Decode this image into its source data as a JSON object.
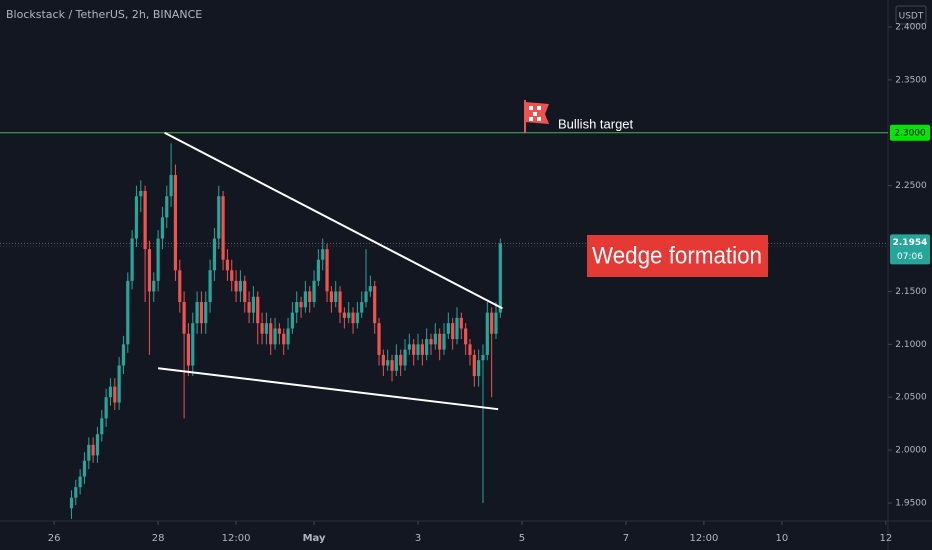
{
  "chart_data": {
    "type": "candlestick",
    "title": "Blockstack / TetherUS, 2h, BINANCE",
    "axis_unit": "USDT",
    "up_color": "#26a69a",
    "down_color": "#ef5350",
    "grid": false,
    "xlim": [
      -25,
      385
    ],
    "ylim": [
      1.933,
      2.4255
    ],
    "xticks": [
      {
        "value": 0,
        "label": "26"
      },
      {
        "value": 48,
        "label": "28"
      },
      {
        "value": 84,
        "label": "12:00"
      },
      {
        "value": 120,
        "label": "May"
      },
      {
        "value": 168,
        "label": "3"
      },
      {
        "value": 216,
        "label": "5"
      },
      {
        "value": 264,
        "label": "7"
      },
      {
        "value": 300,
        "label": "12:00"
      },
      {
        "value": 336,
        "label": "10"
      },
      {
        "value": 384,
        "label": "12"
      }
    ],
    "yticks": [
      {
        "value": 1.95,
        "label": "1.9500"
      },
      {
        "value": 2.0,
        "label": "2.0000"
      },
      {
        "value": 2.05,
        "label": "2.0500"
      },
      {
        "value": 2.1,
        "label": "2.1000"
      },
      {
        "value": 2.15,
        "label": "2.1500"
      },
      {
        "value": 2.25,
        "label": "2.2500"
      },
      {
        "value": 2.35,
        "label": "2.3500"
      },
      {
        "value": 2.4,
        "label": "2.4000"
      }
    ],
    "x": [
      8,
      10,
      12,
      14,
      16,
      18,
      20,
      22,
      24,
      26,
      28,
      30,
      32,
      34,
      36,
      38,
      40,
      42,
      44,
      46,
      48,
      50,
      52,
      54,
      56,
      58,
      60,
      62,
      64,
      66,
      68,
      70,
      72,
      74,
      76,
      78,
      80,
      82,
      84,
      86,
      88,
      90,
      92,
      94,
      96,
      98,
      100,
      102,
      104,
      106,
      108,
      110,
      112,
      114,
      116,
      118,
      120,
      122,
      124,
      126,
      128,
      130,
      132,
      134,
      136,
      138,
      140,
      142,
      144,
      146,
      148,
      150,
      152,
      154,
      156,
      158,
      160,
      162,
      164,
      166,
      168,
      170,
      172,
      174,
      176,
      178,
      180,
      182,
      184,
      186,
      188,
      190,
      192,
      194,
      196,
      198,
      200,
      202,
      204,
      206
    ],
    "candles": [
      [
        1.945,
        1.962,
        1.935,
        1.955
      ],
      [
        1.955,
        1.972,
        1.948,
        1.965
      ],
      [
        1.965,
        1.982,
        1.958,
        1.975
      ],
      [
        1.975,
        1.998,
        1.968,
        1.99
      ],
      [
        1.99,
        2.012,
        1.982,
        2.005
      ],
      [
        2.005,
        2.012,
        1.988,
        1.995
      ],
      [
        1.995,
        2.022,
        1.988,
        2.015
      ],
      [
        2.015,
        2.038,
        2.008,
        2.03
      ],
      [
        2.03,
        2.058,
        2.022,
        2.05
      ],
      [
        2.05,
        2.068,
        2.042,
        2.06
      ],
      [
        2.06,
        2.068,
        2.038,
        2.045
      ],
      [
        2.045,
        2.088,
        2.038,
        2.08
      ],
      [
        2.08,
        2.108,
        2.072,
        2.1
      ],
      [
        2.1,
        2.168,
        2.092,
        2.16
      ],
      [
        2.16,
        2.208,
        2.152,
        2.2
      ],
      [
        2.2,
        2.25,
        2.192,
        2.24
      ],
      [
        2.24,
        2.255,
        2.225,
        2.245
      ],
      [
        2.245,
        2.25,
        2.14,
        2.19
      ],
      [
        2.19,
        2.198,
        2.09,
        2.15
      ],
      [
        2.15,
        2.168,
        2.14,
        2.16
      ],
      [
        2.16,
        2.208,
        2.15,
        2.2
      ],
      [
        2.2,
        2.23,
        2.19,
        2.22
      ],
      [
        2.22,
        2.25,
        2.21,
        2.24
      ],
      [
        2.24,
        2.29,
        2.23,
        2.26
      ],
      [
        2.26,
        2.27,
        2.16,
        2.17
      ],
      [
        2.17,
        2.18,
        2.13,
        2.14
      ],
      [
        2.14,
        2.15,
        2.03,
        2.11
      ],
      [
        2.11,
        2.12,
        2.07,
        2.08
      ],
      [
        2.08,
        2.13,
        2.07,
        2.12
      ],
      [
        2.12,
        2.15,
        2.11,
        2.14
      ],
      [
        2.14,
        2.15,
        2.11,
        2.12
      ],
      [
        2.12,
        2.15,
        2.11,
        2.14
      ],
      [
        2.14,
        2.18,
        2.13,
        2.17
      ],
      [
        2.17,
        2.21,
        2.16,
        2.2
      ],
      [
        2.2,
        2.25,
        2.19,
        2.24
      ],
      [
        2.24,
        2.245,
        2.17,
        2.18
      ],
      [
        2.18,
        2.19,
        2.16,
        2.17
      ],
      [
        2.17,
        2.18,
        2.15,
        2.16
      ],
      [
        2.16,
        2.17,
        2.14,
        2.15
      ],
      [
        2.15,
        2.17,
        2.14,
        2.16
      ],
      [
        2.16,
        2.165,
        2.13,
        2.14
      ],
      [
        2.14,
        2.15,
        2.12,
        2.13
      ],
      [
        2.13,
        2.155,
        2.12,
        2.145
      ],
      [
        2.145,
        2.15,
        2.1,
        2.12
      ],
      [
        2.12,
        2.13,
        2.1,
        2.11
      ],
      [
        2.11,
        2.13,
        2.1,
        2.12
      ],
      [
        2.12,
        2.125,
        2.09,
        2.1
      ],
      [
        2.1,
        2.125,
        2.095,
        2.115
      ],
      [
        2.115,
        2.12,
        2.1,
        2.11
      ],
      [
        2.11,
        2.115,
        2.09,
        2.1
      ],
      [
        2.1,
        2.125,
        2.095,
        2.115
      ],
      [
        2.115,
        2.14,
        2.11,
        2.13
      ],
      [
        2.13,
        2.15,
        2.12,
        2.14
      ],
      [
        2.14,
        2.145,
        2.125,
        2.135
      ],
      [
        2.135,
        2.16,
        2.13,
        2.15
      ],
      [
        2.15,
        2.155,
        2.13,
        2.14
      ],
      [
        2.14,
        2.17,
        2.135,
        2.16
      ],
      [
        2.16,
        2.19,
        2.155,
        2.18
      ],
      [
        2.18,
        2.2,
        2.17,
        2.19
      ],
      [
        2.19,
        2.195,
        2.14,
        2.15
      ],
      [
        2.15,
        2.155,
        2.13,
        2.14
      ],
      [
        2.14,
        2.16,
        2.135,
        2.15
      ],
      [
        2.15,
        2.155,
        2.12,
        2.13
      ],
      [
        2.13,
        2.135,
        2.115,
        2.125
      ],
      [
        2.125,
        2.14,
        2.12,
        2.13
      ],
      [
        2.13,
        2.135,
        2.11,
        2.12
      ],
      [
        2.12,
        2.14,
        2.115,
        2.13
      ],
      [
        2.13,
        2.15,
        2.125,
        2.14
      ],
      [
        2.14,
        2.19,
        2.135,
        2.15
      ],
      [
        2.15,
        2.165,
        2.145,
        2.155
      ],
      [
        2.155,
        2.16,
        2.11,
        2.12
      ],
      [
        2.12,
        2.125,
        2.08,
        2.09
      ],
      [
        2.09,
        2.095,
        2.07,
        2.08
      ],
      [
        2.08,
        2.095,
        2.075,
        2.085
      ],
      [
        2.085,
        2.09,
        2.065,
        2.075
      ],
      [
        2.075,
        2.1,
        2.07,
        2.09
      ],
      [
        2.09,
        2.095,
        2.07,
        2.08
      ],
      [
        2.08,
        2.105,
        2.075,
        2.095
      ],
      [
        2.095,
        2.11,
        2.09,
        2.1
      ],
      [
        2.1,
        2.105,
        2.08,
        2.09
      ],
      [
        2.09,
        2.11,
        2.085,
        2.1
      ],
      [
        2.1,
        2.105,
        2.08,
        2.09
      ],
      [
        2.09,
        2.115,
        2.085,
        2.105
      ],
      [
        2.105,
        2.11,
        2.09,
        2.1
      ],
      [
        2.1,
        2.12,
        2.095,
        2.11
      ],
      [
        2.11,
        2.115,
        2.085,
        2.095
      ],
      [
        2.095,
        2.12,
        2.09,
        2.11
      ],
      [
        2.11,
        2.13,
        2.105,
        2.12
      ],
      [
        2.12,
        2.125,
        2.095,
        2.105
      ],
      [
        2.105,
        2.135,
        2.1,
        2.125
      ],
      [
        2.125,
        2.13,
        2.105,
        2.115
      ],
      [
        2.115,
        2.12,
        2.09,
        2.1
      ],
      [
        2.1,
        2.105,
        2.08,
        2.09
      ],
      [
        2.09,
        2.095,
        2.06,
        2.07
      ],
      [
        2.07,
        2.095,
        2.06,
        2.085
      ],
      [
        2.085,
        2.1,
        1.95,
        2.09
      ],
      [
        2.09,
        2.14,
        2.085,
        2.13
      ],
      [
        2.13,
        2.135,
        2.05,
        2.11
      ],
      [
        2.11,
        2.14,
        2.105,
        2.13
      ],
      [
        2.13,
        2.2,
        2.125,
        2.1954
      ]
    ],
    "target_line": {
      "value": 2.3,
      "label": "2.3000",
      "color": "#4caf50",
      "text": "Bullish target"
    },
    "last_price": {
      "value": 2.1954,
      "label": "2.1954",
      "countdown": "07:06",
      "color": "#26a69a"
    },
    "trendlines": [
      {
        "color": "#ffffff",
        "points": [
          [
            51,
            2.3
          ],
          [
            207,
            2.134
          ]
        ]
      },
      {
        "color": "#ffffff",
        "points": [
          [
            48,
            2.0774
          ],
          [
            205,
            2.0387
          ]
        ]
      }
    ],
    "annotation": {
      "text": "Wedge formation",
      "color": "#e53935"
    }
  }
}
